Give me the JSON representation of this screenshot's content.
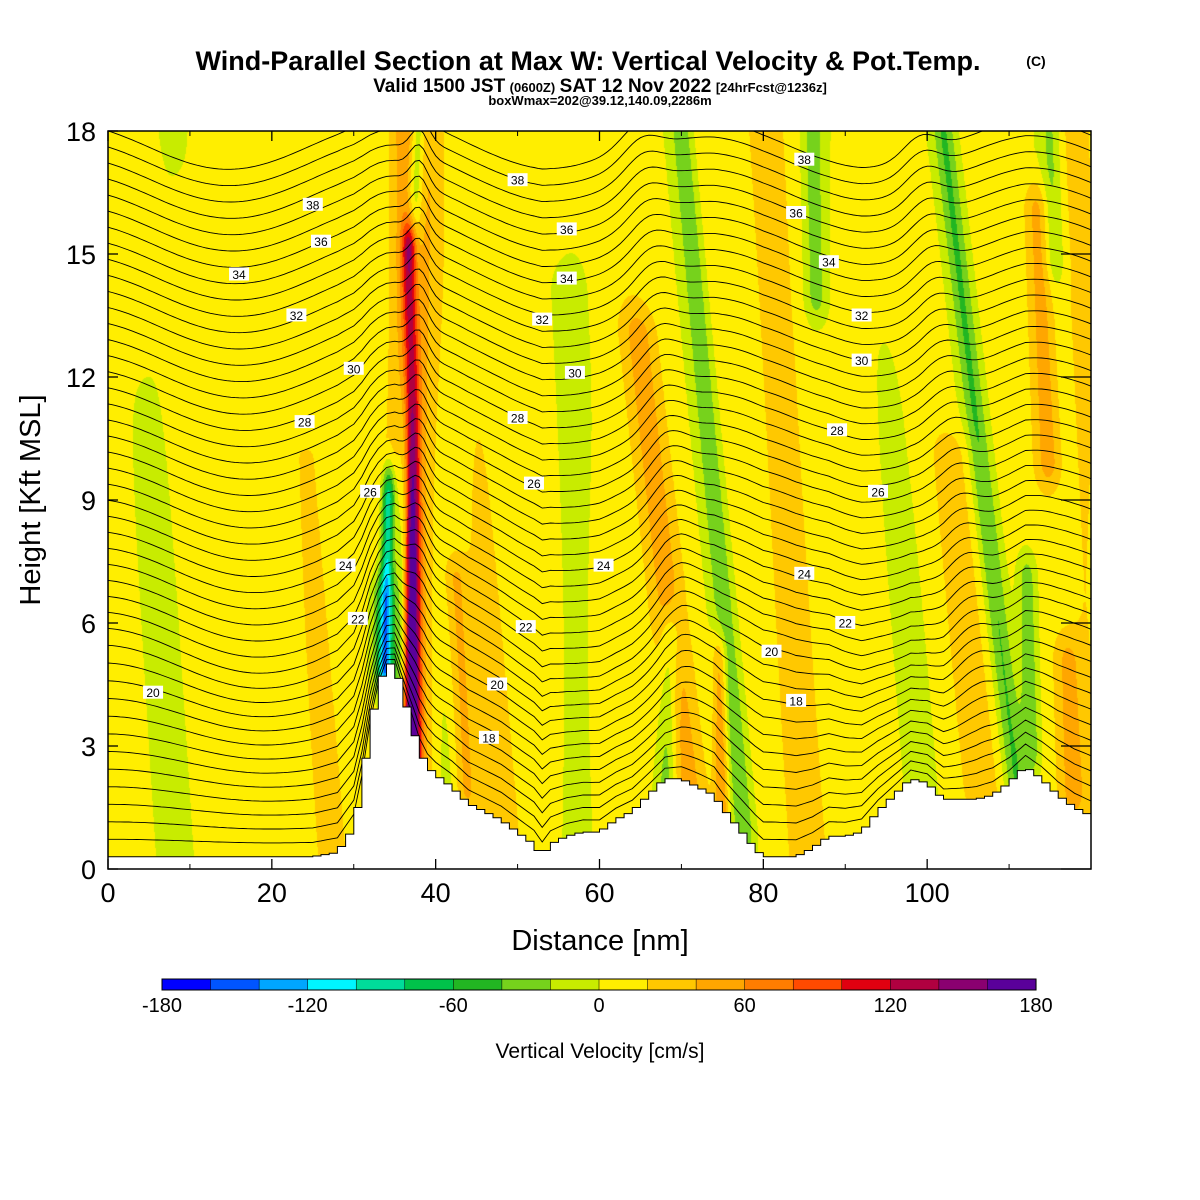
{
  "header": {
    "title": "Wind-Parallel Section at Max W: Vertical Velocity & Pot.Temp.",
    "copyright": "(C)",
    "valid_prefix": "Valid 1500 JST",
    "valid_utc": "(0600Z)",
    "valid_date": "SAT 12 Nov 2022",
    "forecast": "[24hrFcst@1236z]",
    "boxinfo": "boxWmax=202@39.12,140.09,2286m"
  },
  "chart_data": {
    "type": "heatmap",
    "xlabel": "Distance [nm]",
    "ylabel": "Height [Kft MSL]",
    "xlim": [
      0,
      120
    ],
    "ylim": [
      0,
      18
    ],
    "xticks": [
      0,
      20,
      40,
      60,
      80,
      100
    ],
    "yticks": [
      0,
      3,
      6,
      9,
      12,
      15,
      18
    ],
    "colorbar": {
      "label": "Vertical Velocity [cm/s]",
      "range": [
        -180,
        180
      ],
      "step": 20,
      "tick_values": [
        -180,
        -120,
        -60,
        0,
        60,
        120,
        180
      ],
      "colors": [
        "#0000ff",
        "#0055ff",
        "#00a6ff",
        "#00f5ff",
        "#00dc9a",
        "#00c24a",
        "#22b622",
        "#76d21c",
        "#c8ec00",
        "#ffee00",
        "#ffc800",
        "#ffa600",
        "#ff7d00",
        "#ff4a00",
        "#e00010",
        "#b00040",
        "#8a0070",
        "#5a009a"
      ]
    },
    "terrain_kft": [
      [
        0,
        0.3
      ],
      [
        5,
        0.3
      ],
      [
        10,
        0.3
      ],
      [
        15,
        0.3
      ],
      [
        20,
        0.3
      ],
      [
        25,
        0.3
      ],
      [
        28,
        0.4
      ],
      [
        30,
        1.0
      ],
      [
        31,
        2.0
      ],
      [
        32,
        3.4
      ],
      [
        33,
        4.4
      ],
      [
        34,
        5.0
      ],
      [
        35,
        5.0
      ],
      [
        36,
        4.3
      ],
      [
        37,
        3.6
      ],
      [
        38,
        2.9
      ],
      [
        39,
        2.5
      ],
      [
        40,
        2.3
      ],
      [
        42,
        2.0
      ],
      [
        44,
        1.6
      ],
      [
        46,
        1.4
      ],
      [
        48,
        1.2
      ],
      [
        50,
        0.9
      ],
      [
        52,
        0.6
      ],
      [
        53,
        0.3
      ],
      [
        54,
        0.6
      ],
      [
        56,
        0.8
      ],
      [
        58,
        0.9
      ],
      [
        60,
        0.9
      ],
      [
        62,
        1.2
      ],
      [
        64,
        1.4
      ],
      [
        66,
        1.8
      ],
      [
        68,
        2.2
      ],
      [
        70,
        2.2
      ],
      [
        72,
        2.0
      ],
      [
        74,
        1.8
      ],
      [
        75,
        1.5
      ],
      [
        77,
        1.0
      ],
      [
        79,
        0.5
      ],
      [
        80,
        0.3
      ],
      [
        82,
        0.3
      ],
      [
        84,
        0.3
      ],
      [
        86,
        0.5
      ],
      [
        88,
        0.8
      ],
      [
        90,
        0.8
      ],
      [
        92,
        0.9
      ],
      [
        94,
        1.4
      ],
      [
        96,
        1.8
      ],
      [
        98,
        2.2
      ],
      [
        100,
        2.1
      ],
      [
        102,
        1.7
      ],
      [
        104,
        1.7
      ],
      [
        106,
        1.7
      ],
      [
        108,
        1.8
      ],
      [
        110,
        2.1
      ],
      [
        112,
        2.5
      ],
      [
        114,
        2.2
      ],
      [
        116,
        1.8
      ],
      [
        118,
        1.5
      ],
      [
        120,
        1.3
      ]
    ],
    "updraft_bands": [
      {
        "x_base": 37,
        "x_top": 37,
        "w": 2.4,
        "y_start": 0,
        "y_end": 18,
        "amp": 60
      },
      {
        "x_base": 37.3,
        "x_top": 36.8,
        "w": 0.9,
        "y_start": 2.5,
        "y_end": 15,
        "amp": 140
      },
      {
        "x_base": 28,
        "x_top": 22,
        "w": 2.5,
        "y_start": 0,
        "y_end": 10,
        "amp": 18
      },
      {
        "x_base": 44,
        "x_top": 40,
        "w": 1.4,
        "y_start": 2,
        "y_end": 7,
        "amp": 42
      },
      {
        "x_base": 48,
        "x_top": 42,
        "w": 4,
        "y_start": 0,
        "y_end": 18,
        "amp": 16
      },
      {
        "x_base": 72,
        "x_top": 62,
        "w": 2.2,
        "y_start": 1.5,
        "y_end": 13,
        "amp": 38
      },
      {
        "x_base": 75,
        "x_top": 74,
        "w": 0.9,
        "y_start": 1,
        "y_end": 5,
        "amp": 55
      },
      {
        "x_base": 86,
        "x_top": 80,
        "w": 2.4,
        "y_start": 0,
        "y_end": 18,
        "amp": 30
      },
      {
        "x_base": 108,
        "x_top": 99,
        "w": 2.5,
        "y_start": 2,
        "y_end": 10,
        "amp": 24
      },
      {
        "x_base": 117,
        "x_top": 113,
        "w": 1.5,
        "y_start": 10,
        "y_end": 16,
        "amp": 45
      },
      {
        "x_base": 118,
        "x_top": 115,
        "w": 1.5,
        "y_start": 2,
        "y_end": 5,
        "amp": 36
      },
      {
        "x_base": 120,
        "x_top": 118,
        "w": 2,
        "y_start": 0,
        "y_end": 18,
        "amp": 18
      }
    ],
    "downdraft_bands": [
      {
        "x_base": 34.7,
        "x_top": 37.8,
        "w": 1.0,
        "y_start": 4.5,
        "y_end": 18,
        "amp": 75
      },
      {
        "x_base": 33.5,
        "x_top": 35,
        "w": 0.8,
        "y_start": 5,
        "y_end": 9,
        "amp": 115
      },
      {
        "x_base": 33.5,
        "x_top": 33.5,
        "w": 1.3,
        "y_start": 5,
        "y_end": 6.5,
        "amp": 60
      },
      {
        "x_base": 42,
        "x_top": 43,
        "w": 2.2,
        "y_start": 0,
        "y_end": 18,
        "amp": 16
      },
      {
        "x_base": 58,
        "x_top": 55,
        "w": 2,
        "y_start": 0,
        "y_end": 14,
        "amp": 18
      },
      {
        "x_base": 68,
        "x_top": 70,
        "w": 1.2,
        "y_start": 2,
        "y_end": 5.5,
        "amp": 45
      },
      {
        "x_base": 78,
        "x_top": 70,
        "w": 1.3,
        "y_start": 1,
        "y_end": 18,
        "amp": 42
      },
      {
        "x_base": 88,
        "x_top": 86,
        "w": 1.5,
        "y_start": 14,
        "y_end": 18,
        "amp": 40
      },
      {
        "x_base": 112,
        "x_top": 102,
        "w": 1.3,
        "y_start": 2,
        "y_end": 18,
        "amp": 45
      },
      {
        "x_base": 113,
        "x_top": 111,
        "w": 1.2,
        "y_start": 3,
        "y_end": 7,
        "amp": 42
      },
      {
        "x_base": 118,
        "x_top": 115,
        "w": 1.2,
        "y_start": 15,
        "y_end": 18,
        "amp": 30
      },
      {
        "x_base": 8,
        "x_top": 6,
        "w": 3,
        "y_start": 0,
        "y_end": 18,
        "amp": 10
      },
      {
        "x_base": 100,
        "x_top": 96,
        "w": 3,
        "y_start": 0,
        "y_end": 18,
        "amp": 8
      }
    ],
    "isentrope_levels_kft": [
      0.4,
      0.8,
      1.2,
      1.6,
      2.0,
      2.4,
      2.8,
      3.2,
      3.6,
      4.0,
      4.4,
      4.8,
      5.2,
      5.6,
      6.0,
      6.4,
      6.8,
      7.2,
      7.6,
      8.0,
      8.4,
      8.8,
      9.2,
      9.6,
      10.0,
      10.4,
      10.8,
      11.2,
      11.6,
      12.0,
      12.4,
      12.8,
      13.2,
      13.6,
      14.0,
      14.4,
      14.8,
      15.2,
      15.6,
      16.0,
      16.4,
      16.8,
      17.2,
      17.6
    ],
    "isentrope_labels": [
      {
        "text": "20",
        "x": 5.5,
        "y": 4.3
      },
      {
        "text": "38",
        "x": 25,
        "y": 16.2
      },
      {
        "text": "36",
        "x": 26,
        "y": 15.3
      },
      {
        "text": "34",
        "x": 16,
        "y": 14.5
      },
      {
        "text": "32",
        "x": 23,
        "y": 13.5
      },
      {
        "text": "30",
        "x": 30,
        "y": 12.2
      },
      {
        "text": "28",
        "x": 24,
        "y": 10.9
      },
      {
        "text": "26",
        "x": 32,
        "y": 9.2
      },
      {
        "text": "24",
        "x": 29,
        "y": 7.4
      },
      {
        "text": "22",
        "x": 30.5,
        "y": 6.1
      },
      {
        "text": "38",
        "x": 50,
        "y": 16.8
      },
      {
        "text": "36",
        "x": 56,
        "y": 15.6
      },
      {
        "text": "34",
        "x": 56,
        "y": 14.4
      },
      {
        "text": "32",
        "x": 53,
        "y": 13.4
      },
      {
        "text": "30",
        "x": 57,
        "y": 12.1
      },
      {
        "text": "28",
        "x": 50,
        "y": 11.0
      },
      {
        "text": "26",
        "x": 52,
        "y": 9.4
      },
      {
        "text": "24",
        "x": 60.5,
        "y": 7.4
      },
      {
        "text": "22",
        "x": 51,
        "y": 5.9
      },
      {
        "text": "20",
        "x": 47.5,
        "y": 4.5
      },
      {
        "text": "18",
        "x": 46.5,
        "y": 3.2
      },
      {
        "text": "38",
        "x": 85,
        "y": 17.3
      },
      {
        "text": "36",
        "x": 84,
        "y": 16.0
      },
      {
        "text": "34",
        "x": 88,
        "y": 14.8
      },
      {
        "text": "32",
        "x": 92,
        "y": 13.5
      },
      {
        "text": "30",
        "x": 92,
        "y": 12.4
      },
      {
        "text": "28",
        "x": 89,
        "y": 10.7
      },
      {
        "text": "26",
        "x": 94,
        "y": 9.2
      },
      {
        "text": "24",
        "x": 85,
        "y": 7.2
      },
      {
        "text": "22",
        "x": 90,
        "y": 6.0
      },
      {
        "text": "20",
        "x": 81,
        "y": 5.3
      },
      {
        "text": "18",
        "x": 84,
        "y": 4.1
      }
    ]
  }
}
